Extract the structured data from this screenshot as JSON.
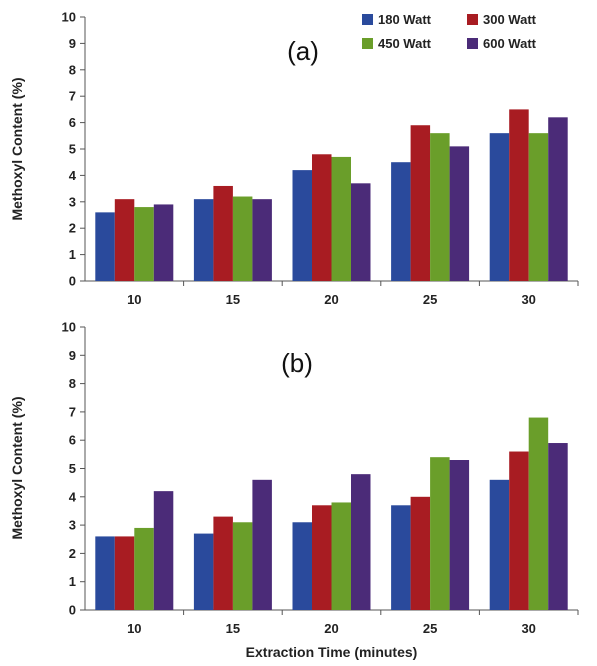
{
  "chart_data": [
    {
      "type": "bar",
      "panel_label": "(a)",
      "ylabel": "Methoxyl Content (%)",
      "xlabel": "",
      "ylim": [
        0,
        10
      ],
      "yticks": [
        0,
        1,
        2,
        3,
        4,
        5,
        6,
        7,
        8,
        9,
        10
      ],
      "categories": [
        "10",
        "15",
        "20",
        "25",
        "30"
      ],
      "legend_placement": "top-right",
      "grid": false,
      "series": [
        {
          "name": "180 Watt",
          "color": "#2a4a9c",
          "values": [
            2.6,
            3.1,
            4.2,
            4.5,
            5.6
          ]
        },
        {
          "name": "300 Watt",
          "color": "#a81c22",
          "values": [
            3.1,
            3.6,
            4.8,
            5.9,
            6.5
          ]
        },
        {
          "name": "450 Watt",
          "color": "#6a9e2a",
          "values": [
            2.8,
            3.2,
            4.7,
            5.6,
            5.6
          ]
        },
        {
          "name": "600 Watt",
          "color": "#4b2b78",
          "values": [
            2.9,
            3.1,
            3.7,
            5.1,
            6.2
          ]
        }
      ]
    },
    {
      "type": "bar",
      "panel_label": "(b)",
      "ylabel": "Methoxyl Content (%)",
      "xlabel": "Extraction Time (minutes)",
      "ylim": [
        0,
        10
      ],
      "yticks": [
        0,
        1,
        2,
        3,
        4,
        5,
        6,
        7,
        8,
        9,
        10
      ],
      "categories": [
        "10",
        "15",
        "20",
        "25",
        "30"
      ],
      "grid": false,
      "series": [
        {
          "color": "#2a4a9c",
          "values": [
            2.6,
            2.7,
            3.1,
            3.7,
            4.6
          ]
        },
        {
          "color": "#a81c22",
          "values": [
            2.6,
            3.3,
            3.7,
            4.0,
            5.6
          ]
        },
        {
          "color": "#6a9e2a",
          "values": [
            2.9,
            3.1,
            3.8,
            5.4,
            6.8
          ]
        },
        {
          "color": "#4b2b78",
          "values": [
            4.2,
            4.6,
            4.8,
            5.3,
            5.9
          ]
        }
      ]
    }
  ]
}
